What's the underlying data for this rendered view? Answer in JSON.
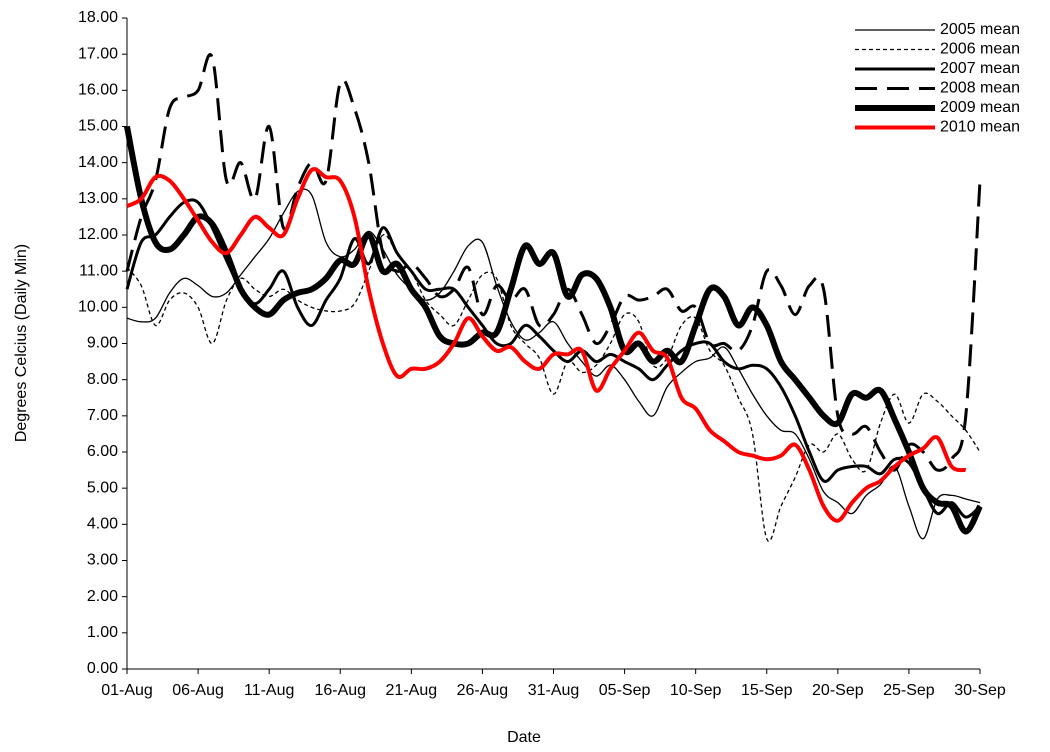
{
  "chart_data": {
    "type": "line",
    "x_label": "Date",
    "y_label": "Degrees Celcius (Daily Min)",
    "categories": [
      "01-Aug",
      null,
      null,
      null,
      null,
      "06-Aug",
      null,
      null,
      null,
      null,
      "11-Aug",
      null,
      null,
      null,
      null,
      "16-Aug",
      null,
      null,
      null,
      null,
      "21-Aug",
      null,
      null,
      null,
      null,
      "26-Aug",
      null,
      null,
      null,
      null,
      "31-Aug",
      null,
      null,
      null,
      null,
      "05-Sep",
      null,
      null,
      null,
      null,
      "10-Sep",
      null,
      null,
      null,
      null,
      "15-Sep",
      null,
      null,
      null,
      null,
      "20-Sep",
      null,
      null,
      null,
      null,
      "25-Sep",
      null,
      null,
      null,
      null,
      "30-Sep"
    ],
    "ylim": [
      0,
      18
    ],
    "yticks": [
      {
        "value": 0,
        "label": "0.00"
      },
      {
        "value": 1,
        "label": "1.00"
      },
      {
        "value": 2,
        "label": "2.00"
      },
      {
        "value": 3,
        "label": "3.00"
      },
      {
        "value": 4,
        "label": "4.00"
      },
      {
        "value": 5,
        "label": "5.00"
      },
      {
        "value": 6,
        "label": "6.00"
      },
      {
        "value": 7,
        "label": "7.00"
      },
      {
        "value": 8,
        "label": "8.00"
      },
      {
        "value": 9,
        "label": "9.00"
      },
      {
        "value": 10,
        "label": "10.00"
      },
      {
        "value": 11,
        "label": "11.00"
      },
      {
        "value": 12,
        "label": "12.00"
      },
      {
        "value": 13,
        "label": "13.00"
      },
      {
        "value": 14,
        "label": "14.00"
      },
      {
        "value": 15,
        "label": "15.00"
      },
      {
        "value": 16,
        "label": "16.00"
      },
      {
        "value": 17,
        "label": "17.00"
      },
      {
        "value": 18,
        "label": "18.00"
      }
    ],
    "legend": "upper right",
    "series": [
      {
        "name": "2005 mean",
        "color": "#000000",
        "width": 1.3,
        "dash": "solid",
        "values": [
          9.7,
          9.6,
          9.7,
          10.4,
          10.8,
          10.6,
          10.3,
          10.4,
          10.9,
          11.4,
          11.9,
          12.6,
          13.2,
          13.1,
          11.8,
          11.4,
          11.6,
          12.1,
          11.6,
          10.9,
          10.5,
          10.2,
          10.4,
          11.0,
          11.7,
          11.8,
          10.6,
          9.6,
          9.1,
          9.3,
          9.6,
          9.0,
          8.5,
          8.1,
          8.4,
          8.0,
          7.4,
          7.0,
          7.8,
          8.2,
          8.5,
          8.6,
          8.9,
          8.3,
          7.6,
          7.0,
          6.6,
          6.5,
          5.8,
          4.9,
          4.6,
          4.3,
          4.8,
          5.1,
          5.6,
          4.5,
          3.6,
          4.7,
          4.8,
          4.7,
          4.6
        ]
      },
      {
        "name": "2006 mean",
        "color": "#000000",
        "width": 1.3,
        "dash": "short",
        "values": [
          11.1,
          10.6,
          9.5,
          10.2,
          10.4,
          10.0,
          9.0,
          10.2,
          10.8,
          10.5,
          10.3,
          10.5,
          10.2,
          10.0,
          9.9,
          9.9,
          10.1,
          11.0,
          12.0,
          11.5,
          11.0,
          10.2,
          9.8,
          9.5,
          10.2,
          10.9,
          10.8,
          9.5,
          9.0,
          8.6,
          7.6,
          8.5,
          8.2,
          8.4,
          9.0,
          9.8,
          9.6,
          8.4,
          8.6,
          9.5,
          9.7,
          8.8,
          8.4,
          7.5,
          6.5,
          3.6,
          4.5,
          5.3,
          6.2,
          6.0,
          6.5,
          5.8,
          5.5,
          6.8,
          7.6,
          6.8,
          7.6,
          7.4,
          7.0,
          6.6,
          6.0
        ]
      },
      {
        "name": "2007 mean",
        "color": "#000000",
        "width": 3,
        "dash": "solid",
        "values": [
          10.5,
          11.8,
          12.0,
          12.5,
          12.9,
          12.9,
          12.2,
          11.3,
          10.5,
          10.1,
          10.5,
          11.0,
          10.0,
          9.5,
          10.2,
          10.8,
          11.9,
          11.2,
          12.2,
          11.5,
          11.0,
          10.5,
          10.5,
          10.5,
          10.0,
          9.5,
          9.0,
          9.0,
          9.5,
          9.2,
          8.8,
          8.5,
          8.8,
          8.5,
          8.7,
          8.5,
          8.3,
          8.0,
          8.4,
          8.8,
          9.0,
          9.0,
          8.5,
          8.3,
          8.4,
          8.3,
          7.8,
          7.0,
          6.0,
          5.2,
          5.5,
          5.6,
          5.6,
          5.4,
          5.8,
          5.7,
          5.0,
          4.3,
          4.6,
          4.2,
          4.5
        ]
      },
      {
        "name": "2008 mean",
        "color": "#000000",
        "width": 3,
        "dash": "long",
        "values": [
          11.0,
          12.5,
          13.5,
          15.5,
          15.8,
          16.0,
          16.9,
          13.5,
          14.0,
          13.0,
          15.0,
          12.2,
          13.3,
          14.0,
          13.5,
          16.2,
          15.5,
          14.0,
          11.5,
          11.0,
          11.2,
          10.8,
          10.3,
          10.5,
          11.1,
          9.8,
          10.6,
          10.2,
          10.5,
          9.5,
          9.8,
          10.5,
          9.8,
          9.0,
          9.5,
          10.3,
          10.2,
          10.3,
          10.5,
          9.9,
          10.0,
          9.0,
          9.0,
          8.8,
          9.5,
          11.0,
          10.6,
          9.8,
          10.6,
          10.5,
          7.0,
          6.5,
          6.7,
          6.0,
          5.5,
          6.2,
          6.0,
          5.5,
          5.8,
          7.0,
          13.5
        ]
      },
      {
        "name": "2009 mean",
        "color": "#000000",
        "width": 6,
        "dash": "solid",
        "values": [
          15.0,
          13.0,
          11.8,
          11.6,
          12.0,
          12.5,
          12.3,
          11.5,
          10.5,
          10.0,
          9.8,
          10.2,
          10.4,
          10.5,
          10.8,
          11.3,
          11.2,
          12.0,
          11.0,
          11.2,
          10.5,
          10.0,
          9.2,
          9.0,
          9.0,
          9.3,
          9.3,
          10.5,
          11.7,
          11.2,
          11.5,
          10.3,
          10.9,
          10.8,
          10.0,
          8.8,
          9.0,
          8.5,
          8.8,
          8.5,
          9.5,
          10.5,
          10.3,
          9.5,
          10.0,
          9.5,
          8.5,
          8.0,
          7.5,
          7.0,
          6.8,
          7.6,
          7.5,
          7.7,
          6.9,
          6.0,
          5.0,
          4.6,
          4.5,
          3.8,
          4.5
        ]
      },
      {
        "name": "2010 mean",
        "color": "#ff0000",
        "width": 4,
        "dash": "solid",
        "values": [
          12.8,
          13.0,
          13.6,
          13.5,
          13.0,
          12.4,
          11.8,
          11.5,
          12.0,
          12.5,
          12.2,
          12.0,
          13.0,
          13.8,
          13.6,
          13.5,
          12.5,
          10.5,
          9.0,
          8.1,
          8.3,
          8.3,
          8.5,
          9.0,
          9.7,
          9.2,
          8.8,
          8.9,
          8.5,
          8.3,
          8.7,
          8.7,
          8.8,
          7.7,
          8.3,
          8.8,
          9.3,
          8.8,
          8.6,
          7.5,
          7.2,
          6.6,
          6.3,
          6.0,
          5.9,
          5.8,
          5.9,
          6.2,
          5.5,
          4.5,
          4.1,
          4.6,
          5.0,
          5.2,
          5.6,
          5.9,
          6.1,
          6.4,
          5.6,
          5.5,
          null
        ]
      }
    ]
  }
}
